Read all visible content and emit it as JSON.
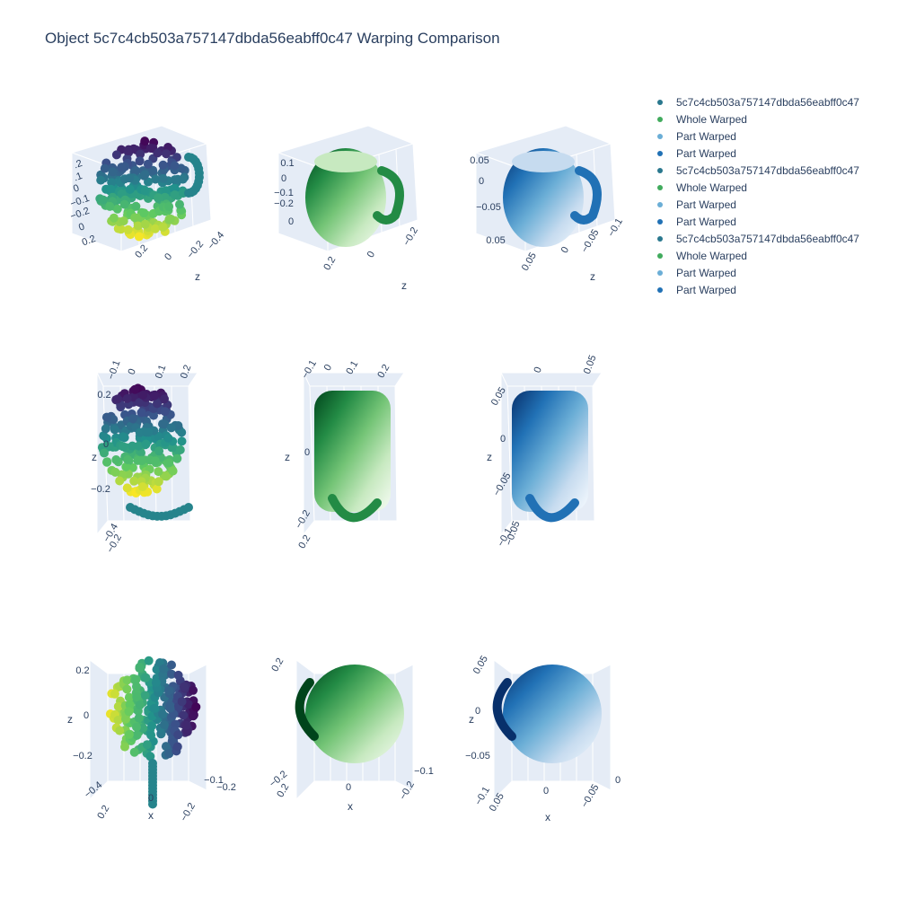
{
  "chart_data": {
    "type": "scatter",
    "title": "Object 5c7c4cb503a757147dbda56eabff0c47 Warping Comparison",
    "legend": {
      "placement": "right",
      "entries": [
        {
          "name": "5c7c4cb503a757147dbda56eabff0c47",
          "color": "#2a788e"
        },
        {
          "name": "Whole Warped",
          "color": "#41ab5d"
        },
        {
          "name": "Part Warped",
          "color": "#6baed6"
        },
        {
          "name": "Part Warped",
          "color": "#2171b5"
        },
        {
          "name": "5c7c4cb503a757147dbda56eabff0c47",
          "color": "#2a788e"
        },
        {
          "name": "Whole Warped",
          "color": "#41ab5d"
        },
        {
          "name": "Part Warped",
          "color": "#6baed6"
        },
        {
          "name": "Part Warped",
          "color": "#2171b5"
        },
        {
          "name": "5c7c4cb503a757147dbda56eabff0c47",
          "color": "#2a788e"
        },
        {
          "name": "Whole Warped",
          "color": "#41ab5d"
        },
        {
          "name": "Part Warped",
          "color": "#6baed6"
        },
        {
          "name": "Part Warped",
          "color": "#2171b5"
        }
      ]
    },
    "colorscales": {
      "viridis": [
        "#440154",
        "#3b528b",
        "#21918c",
        "#5ec962",
        "#fde725"
      ],
      "greens": [
        "#00441b",
        "#238b45",
        "#74c476",
        "#c7e9c0",
        "#f7fcf5"
      ],
      "blues": [
        "#08306b",
        "#2171b5",
        "#6baed6",
        "#c6dbef",
        "#f7fbff"
      ],
      "scene_bg": "#e5ecf6"
    },
    "scenes": [
      {
        "id": "r1c1",
        "colorscale": "viridis",
        "view": "iso-side",
        "ticks": [
          ".2",
          ".1",
          "0",
          "−0.1",
          "−0.2",
          "0",
          "0.2",
          "0.2",
          "0",
          "−0.2",
          "−0.4"
        ],
        "axis_titles": [
          "z"
        ]
      },
      {
        "id": "r1c2",
        "colorscale": "greens",
        "view": "iso-side",
        "ticks": [
          "0.1",
          "0",
          "−0.1",
          "−0.2",
          "0",
          "0.2",
          "0",
          "−0.2"
        ],
        "axis_titles": [
          "z"
        ]
      },
      {
        "id": "r1c3",
        "colorscale": "blues",
        "view": "iso-side",
        "ticks": [
          "0.05",
          "0",
          "−0.05",
          "0.05",
          "0.05",
          "0",
          "−0.05",
          "−0.1"
        ],
        "axis_titles": [
          "z"
        ]
      },
      {
        "id": "r2c1",
        "colorscale": "viridis",
        "view": "front",
        "ticks": [
          "−0.1",
          "0",
          "0.1",
          "0.2",
          "0.2",
          "0",
          "−0.2",
          "−0.4",
          "−0.2"
        ],
        "axis_titles": [
          "z"
        ]
      },
      {
        "id": "r2c2",
        "colorscale": "greens",
        "view": "front",
        "ticks": [
          "−0.1",
          "0",
          "0.1",
          "0.2",
          "0",
          "−0.2",
          "0.2"
        ],
        "axis_titles": [
          "z"
        ]
      },
      {
        "id": "r2c3",
        "colorscale": "blues",
        "view": "front",
        "ticks": [
          "0",
          "0.05",
          "0.05",
          "0",
          "−0.05",
          "−0.1",
          "−0.05"
        ],
        "axis_titles": [
          "z"
        ]
      },
      {
        "id": "r3c1",
        "colorscale": "viridis",
        "view": "top",
        "ticks": [
          "0.2",
          "0",
          "−0.2",
          "−0.4",
          "0.2",
          "0",
          "−0.2",
          "−0.1",
          "−0.2"
        ],
        "axis_titles": [
          "z",
          "x"
        ]
      },
      {
        "id": "r3c2",
        "colorscale": "greens",
        "view": "top",
        "ticks": [
          "0.2",
          "−0.2",
          "0.2",
          "0",
          "−0.2",
          "−0.1"
        ],
        "axis_titles": [
          "x"
        ]
      },
      {
        "id": "r3c3",
        "colorscale": "blues",
        "view": "top",
        "ticks": [
          "0.05",
          "0",
          "−0.05",
          "−0.1",
          "0.05",
          "0",
          "−0.05",
          "0"
        ],
        "axis_titles": [
          "z",
          "x"
        ]
      }
    ]
  }
}
